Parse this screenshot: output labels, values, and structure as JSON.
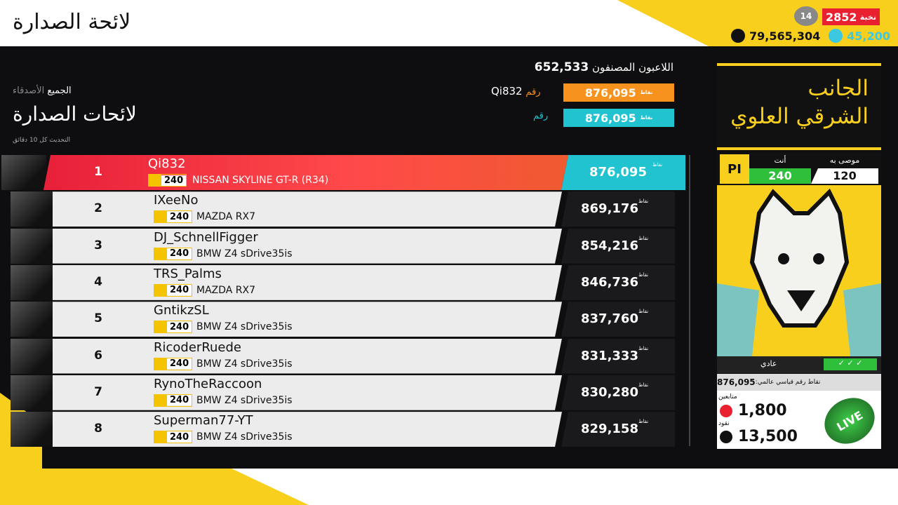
{
  "header": {
    "title": "لائحة الصدارة",
    "rank_label": "نخبة",
    "rank_value": "2852",
    "level": "14",
    "credits": "79,565,304",
    "forzathon_points": "45,200"
  },
  "summary": {
    "ranked_players_label": "اللاعبون المصنفون",
    "ranked_players": "652,533",
    "tabs": [
      "الأصدقاء",
      "الجميع"
    ],
    "heading": "لائحات الصدارة",
    "update_note": "التحديث كل 10 دقائق",
    "my_entry": {
      "points_label": "نقاط",
      "score": "876,095",
      "name": "Qi832",
      "rank_label": "رقم"
    },
    "target_entry": {
      "points_label": "نقاط",
      "score": "876,095",
      "rank_label": "رقم"
    }
  },
  "rows": [
    {
      "rank": "1",
      "name": "Qi832",
      "pi": "240",
      "car": "NISSAN SKYLINE GT-R (R34)",
      "score": "876,095",
      "points_label": "نقاط"
    },
    {
      "rank": "2",
      "name": "IXeeNo",
      "pi": "240",
      "car": "MAZDA RX7",
      "score": "869,176",
      "points_label": "نقاط"
    },
    {
      "rank": "3",
      "name": "DJ_SchnellFigger",
      "pi": "240",
      "car": "BMW Z4 sDrive35is",
      "score": "854,216",
      "points_label": "نقاط"
    },
    {
      "rank": "4",
      "name": "TRS_Palms",
      "pi": "240",
      "car": "MAZDA RX7",
      "score": "846,736",
      "points_label": "نقاط"
    },
    {
      "rank": "5",
      "name": "GntikzSL",
      "pi": "240",
      "car": "BMW Z4 sDrive35is",
      "score": "837,760",
      "points_label": "نقاط"
    },
    {
      "rank": "6",
      "name": "RicoderRuede",
      "pi": "240",
      "car": "BMW Z4 sDrive35is",
      "score": "831,333",
      "points_label": "نقاط"
    },
    {
      "rank": "7",
      "name": "RynoTheRaccoon",
      "pi": "240",
      "car": "BMW Z4 sDrive35is",
      "score": "830,280",
      "points_label": "نقاط"
    },
    {
      "rank": "8",
      "name": "Superman77-YT",
      "pi": "240",
      "car": "BMW Z4 sDrive35is",
      "score": "829,158",
      "points_label": "نقاط"
    }
  ],
  "panel": {
    "title_lines": [
      "الجانب",
      "الشرقي العلوي"
    ],
    "recommended_label": "موصى به",
    "recommended": "120",
    "you_label": "أنت",
    "you": "240",
    "difficulty": "عادي",
    "world_record_label": "نقاط رقم قياسي عالمي:",
    "world_record": "876,095",
    "followers_label": "متابعين",
    "followers": "1,800",
    "cash_label": "نقود",
    "cash": "13,500",
    "badge": "LIVE"
  }
}
